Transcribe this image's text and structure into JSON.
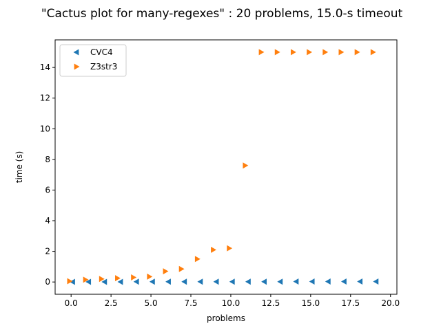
{
  "chart_data": {
    "type": "scatter",
    "title": "\"Cactus plot for many-regexes\" : 20 problems, 15.0-s timeout",
    "xlabel": "problems",
    "ylabel": "time (s)",
    "xlim": [
      -1,
      20.4
    ],
    "ylim": [
      -0.8,
      15.8
    ],
    "xticks": [
      0.0,
      2.5,
      5.0,
      7.5,
      10.0,
      12.5,
      15.0,
      17.5,
      20.0
    ],
    "xtick_labels": [
      "0.0",
      "2.5",
      "5.0",
      "7.5",
      "10.0",
      "12.5",
      "15.0",
      "17.5",
      "20.0"
    ],
    "yticks": [
      0,
      2,
      4,
      6,
      8,
      10,
      12,
      14
    ],
    "ytick_labels": [
      "0",
      "2",
      "4",
      "6",
      "8",
      "10",
      "12",
      "14"
    ],
    "grid": false,
    "legend_position": "top-left",
    "series": [
      {
        "name": "CVC4",
        "marker": "triangle-left",
        "color": "#1f77b4",
        "x": [
          0.1,
          1.1,
          2.1,
          3.1,
          4.1,
          5.1,
          6.1,
          7.1,
          8.1,
          9.1,
          10.1,
          11.1,
          12.1,
          13.1,
          14.1,
          15.1,
          16.1,
          17.1,
          18.1,
          19.1
        ],
        "y": [
          0.01,
          0.01,
          0.01,
          0.01,
          0.02,
          0.02,
          0.02,
          0.02,
          0.02,
          0.02,
          0.02,
          0.02,
          0.02,
          0.02,
          0.03,
          0.03,
          0.03,
          0.03,
          0.03,
          0.03
        ]
      },
      {
        "name": "Z3str3",
        "marker": "triangle-right",
        "color": "#ff7f0e",
        "x": [
          -0.1,
          0.9,
          1.9,
          2.9,
          3.9,
          4.9,
          5.9,
          6.9,
          7.9,
          8.9,
          9.9,
          10.9,
          11.9,
          12.9,
          13.9,
          14.9,
          15.9,
          16.9,
          17.9,
          18.9
        ],
        "y": [
          0.05,
          0.15,
          0.2,
          0.25,
          0.3,
          0.35,
          0.7,
          0.85,
          1.5,
          2.1,
          2.2,
          7.6,
          15.0,
          15.0,
          15.0,
          15.0,
          15.0,
          15.0,
          15.0,
          15.0
        ]
      }
    ]
  }
}
